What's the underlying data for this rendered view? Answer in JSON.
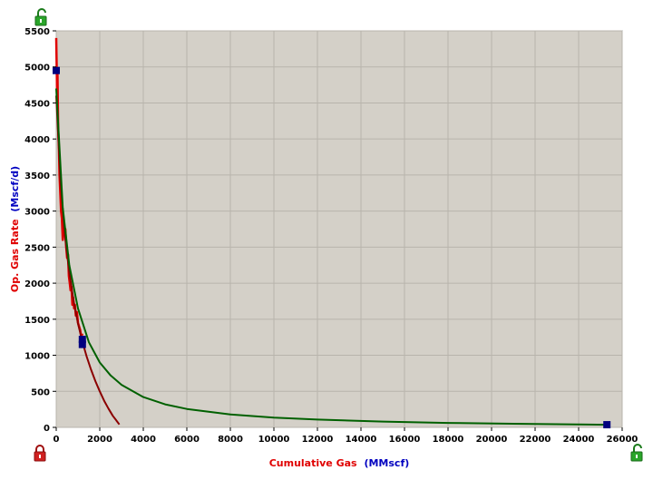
{
  "colors": {
    "background": "#d4d0c8",
    "grid": "#b8b4ac",
    "red_series": "#e00000",
    "dark_red_series": "#8b0000",
    "green_series": "#006000",
    "marker": "#00007f",
    "unlock_green": "#2aa52a",
    "lock_red": "#d02020",
    "title_red": "#e00000",
    "unit_blue": "#0000c0"
  },
  "icons": {
    "top_left": "unlock-icon",
    "bottom_left": "lock-icon",
    "bottom_right": "unlock-icon"
  },
  "chart_data": {
    "type": "line",
    "xlabel": {
      "name": "Cumulative Gas",
      "unit": "(MMscf)"
    },
    "ylabel": {
      "name": "Op. Gas Rate",
      "unit": "(Mscf/d)"
    },
    "xlim": [
      0,
      26000
    ],
    "ylim": [
      0,
      5500
    ],
    "xticks": [
      0,
      2000,
      4000,
      6000,
      8000,
      10000,
      12000,
      14000,
      16000,
      18000,
      20000,
      22000,
      24000,
      26000
    ],
    "yticks": [
      0,
      500,
      1000,
      1500,
      2000,
      2500,
      3000,
      3500,
      4000,
      4500,
      5000,
      5500
    ],
    "grid": true,
    "series": [
      {
        "style": "data",
        "color": "#e00000",
        "x": [
          0,
          20,
          40,
          60,
          90,
          120,
          150,
          180,
          220,
          260,
          300,
          340,
          380,
          420,
          460,
          500,
          540,
          580,
          620,
          660,
          700,
          740,
          780,
          820,
          860,
          900,
          950,
          1000,
          1050,
          1100,
          1150,
          1200
        ],
        "y": [
          5400,
          5000,
          4600,
          4900,
          4100,
          3900,
          3500,
          3300,
          3000,
          2900,
          2600,
          2800,
          2700,
          2750,
          2500,
          2350,
          2400,
          2100,
          2000,
          1900,
          1950,
          1700,
          1800,
          1650,
          1700,
          1550,
          1600,
          1450,
          1400,
          1350,
          1250,
          1300
        ]
      },
      {
        "style": "fit",
        "color": "#8b0000",
        "x": [
          0,
          200,
          400,
          600,
          800,
          1000,
          1200,
          1400,
          1600,
          1800,
          2000,
          2200,
          2400,
          2600,
          2800,
          2900
        ],
        "y": [
          4600,
          3400,
          2650,
          2150,
          1750,
          1440,
          1190,
          980,
          800,
          640,
          500,
          370,
          260,
          160,
          80,
          40
        ]
      },
      {
        "style": "fit",
        "color": "#006000",
        "x": [
          0,
          300,
          600,
          1000,
          1500,
          2000,
          2500,
          3000,
          4000,
          5000,
          6000,
          8000,
          10000,
          12000,
          15000,
          18000,
          21000,
          24000,
          25300
        ],
        "y": [
          4700,
          3050,
          2250,
          1650,
          1180,
          900,
          720,
          590,
          420,
          320,
          255,
          180,
          135,
          108,
          80,
          62,
          50,
          40,
          37
        ]
      }
    ],
    "markers": [
      {
        "x": 0,
        "y": 4950
      },
      {
        "x": 1200,
        "y": 1220
      },
      {
        "x": 1200,
        "y": 1150
      },
      {
        "x": 25300,
        "y": 37
      }
    ]
  }
}
